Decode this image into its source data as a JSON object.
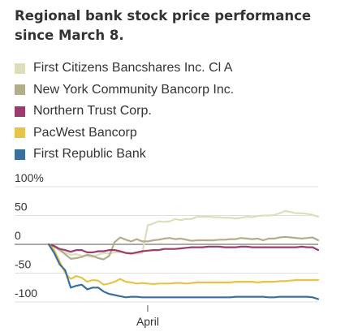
{
  "chart_data": {
    "type": "line",
    "title": "Regional bank stock price performance since March 8.",
    "xlabel": "",
    "ylabel": "",
    "ylim": [
      -100,
      100
    ],
    "y_ticks": [
      "100%",
      "50",
      "0",
      "-50",
      "-100"
    ],
    "y_tick_values": [
      100,
      50,
      0,
      -50,
      -100
    ],
    "x_tick_labels": [
      "April"
    ],
    "x_tick_index": 18,
    "legend_position": "top-left",
    "grid": true,
    "series": [
      {
        "name": "First Citizens Bancshares Inc. Cl A",
        "color": "#deddbc",
        "values": [
          0,
          -5,
          -10,
          -14,
          -18,
          -17,
          -20,
          -20,
          -22,
          -18,
          -15,
          -16,
          -14,
          -14,
          -15,
          -15,
          -16,
          -15,
          33,
          36,
          40,
          39,
          40,
          44,
          42,
          44,
          44,
          48,
          48,
          48,
          47,
          47,
          46,
          46,
          45,
          46,
          48,
          47,
          49,
          50,
          50,
          51,
          54,
          58,
          56,
          54,
          54,
          53,
          51,
          48
        ]
      },
      {
        "name": "New York Community Bancorp Inc.",
        "color": "#b4ad8c",
        "values": [
          0,
          -4,
          -10,
          -17,
          -25,
          -24,
          -22,
          -18,
          -20,
          -24,
          -26,
          -20,
          4,
          12,
          8,
          5,
          9,
          5,
          5,
          7,
          8,
          10,
          11,
          9,
          10,
          8,
          6,
          7,
          7,
          7,
          7,
          8,
          8,
          9,
          9,
          11,
          10,
          9,
          10,
          7,
          10,
          10,
          12,
          13,
          12,
          11,
          10,
          11,
          12,
          7
        ]
      },
      {
        "name": "Northern Trust Corp.",
        "color": "#9b3d6c",
        "values": [
          0,
          -3,
          -8,
          -10,
          -13,
          -10,
          -10,
          -14,
          -14,
          -12,
          -12,
          -10,
          -10,
          -12,
          -15,
          -16,
          -14,
          -12,
          -11,
          -10,
          -10,
          -8,
          -8,
          -8,
          -7,
          -6,
          -5,
          -5,
          -5,
          -4,
          -4,
          -4,
          -5,
          -5,
          -5,
          -4,
          -4,
          -5,
          -5,
          -5,
          -5,
          -5,
          -5,
          -5,
          -5,
          -5,
          -4,
          -5,
          -5,
          -10
        ]
      },
      {
        "name": "PacWest Bancorp",
        "color": "#e6c44a",
        "values": [
          0,
          -10,
          -30,
          -50,
          -60,
          -55,
          -58,
          -65,
          -62,
          -63,
          -70,
          -68,
          -65,
          -60,
          -65,
          -66,
          -68,
          -67,
          -68,
          -69,
          -68,
          -68,
          -68,
          -67,
          -67,
          -68,
          -67,
          -66,
          -66,
          -66,
          -66,
          -66,
          -66,
          -66,
          -65,
          -65,
          -65,
          -65,
          -66,
          -65,
          -65,
          -65,
          -64,
          -64,
          -63,
          -62,
          -62,
          -62,
          -62,
          -62
        ]
      },
      {
        "name": "First Republic Bank",
        "color": "#3a6f9e",
        "values": [
          0,
          -15,
          -35,
          -45,
          -75,
          -72,
          -70,
          -78,
          -75,
          -75,
          -82,
          -86,
          -88,
          -90,
          -92,
          -91,
          -91,
          -92,
          -92,
          -92,
          -92,
          -92,
          -92,
          -92,
          -92,
          -92,
          -92,
          -92,
          -92,
          -92,
          -92,
          -92,
          -92,
          -92,
          -91,
          -91,
          -91,
          -91,
          -91,
          -91,
          -92,
          -92,
          -91,
          -91,
          -91,
          -91,
          -91,
          -91,
          -92,
          -95
        ]
      }
    ]
  }
}
